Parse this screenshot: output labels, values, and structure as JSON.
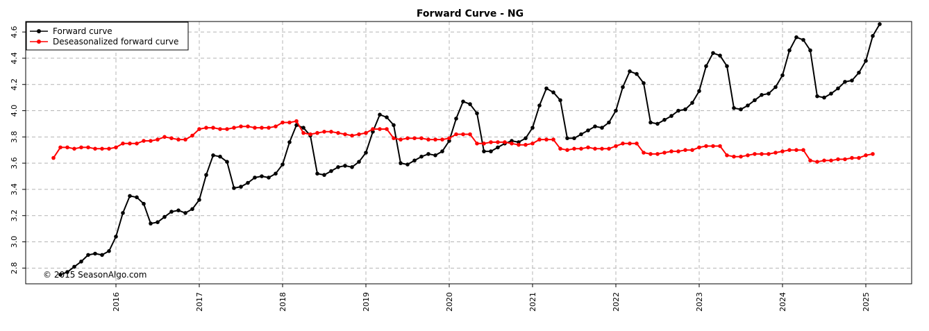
{
  "chart_data": {
    "type": "line",
    "title": "Forward Curve -  NG",
    "credit": "© 2015 SeasonAlgo.com",
    "xlabel": "",
    "ylabel": "",
    "x_start": "2015-03",
    "x_ticks": [
      "2016",
      "2017",
      "2018",
      "2019",
      "2020",
      "2021",
      "2022",
      "2023",
      "2024",
      "2025"
    ],
    "y_ticks": [
      2.8,
      3.0,
      3.2,
      3.4,
      3.6,
      3.8,
      4.0,
      4.2,
      4.4,
      4.6
    ],
    "ylim": [
      2.68,
      4.68
    ],
    "grid": true,
    "legend_position": "top-left",
    "series": [
      {
        "name": "Forward curve",
        "color": "#000000",
        "start_date": "2015-05",
        "values": [
          2.75,
          2.77,
          2.81,
          2.85,
          2.9,
          2.91,
          2.9,
          2.93,
          3.04,
          3.22,
          3.35,
          3.34,
          3.29,
          3.14,
          3.15,
          3.19,
          3.23,
          3.24,
          3.22,
          3.25,
          3.32,
          3.51,
          3.66,
          3.65,
          3.61,
          3.41,
          3.42,
          3.45,
          3.49,
          3.5,
          3.49,
          3.52,
          3.59,
          3.76,
          3.89,
          3.87,
          3.81,
          3.52,
          3.51,
          3.54,
          3.57,
          3.58,
          3.57,
          3.61,
          3.68,
          3.84,
          3.97,
          3.95,
          3.89,
          3.6,
          3.59,
          3.62,
          3.65,
          3.67,
          3.66,
          3.69,
          3.77,
          3.94,
          4.07,
          4.05,
          3.98,
          3.69,
          3.69,
          3.72,
          3.75,
          3.77,
          3.76,
          3.79,
          3.87,
          4.04,
          4.17,
          4.14,
          4.08,
          3.79,
          3.79,
          3.82,
          3.85,
          3.88,
          3.87,
          3.91,
          4.0,
          4.18,
          4.3,
          4.28,
          4.21,
          3.91,
          3.9,
          3.93,
          3.96,
          4.0,
          4.01,
          4.06,
          4.15,
          4.34,
          4.44,
          4.42,
          4.34,
          4.02,
          4.01,
          4.04,
          4.08,
          4.12,
          4.13,
          4.18,
          4.27,
          4.46,
          4.56,
          4.54,
          4.46,
          4.11,
          4.1,
          4.13,
          4.17,
          4.22,
          4.23,
          4.29,
          4.38,
          4.57,
          4.66
        ]
      },
      {
        "name": "Deseasonalized forward curve",
        "color": "#ff0000",
        "start_date": "2015-04",
        "values": [
          3.64,
          3.72,
          3.72,
          3.71,
          3.72,
          3.72,
          3.71,
          3.71,
          3.71,
          3.72,
          3.75,
          3.75,
          3.75,
          3.77,
          3.77,
          3.78,
          3.8,
          3.79,
          3.78,
          3.78,
          3.81,
          3.86,
          3.87,
          3.87,
          3.86,
          3.86,
          3.87,
          3.88,
          3.88,
          3.87,
          3.87,
          3.87,
          3.88,
          3.91,
          3.91,
          3.92,
          3.83,
          3.82,
          3.83,
          3.84,
          3.84,
          3.83,
          3.82,
          3.81,
          3.82,
          3.83,
          3.86,
          3.86,
          3.86,
          3.79,
          3.78,
          3.79,
          3.79,
          3.79,
          3.78,
          3.78,
          3.78,
          3.79,
          3.82,
          3.82,
          3.82,
          3.75,
          3.75,
          3.76,
          3.76,
          3.76,
          3.75,
          3.74,
          3.74,
          3.75,
          3.78,
          3.78,
          3.78,
          3.71,
          3.7,
          3.71,
          3.71,
          3.72,
          3.71,
          3.71,
          3.71,
          3.73,
          3.75,
          3.75,
          3.75,
          3.68,
          3.67,
          3.67,
          3.68,
          3.69,
          3.69,
          3.7,
          3.7,
          3.72,
          3.73,
          3.73,
          3.73,
          3.66,
          3.65,
          3.65,
          3.66,
          3.67,
          3.67,
          3.67,
          3.68,
          3.69,
          3.7,
          3.7,
          3.7,
          3.62,
          3.61,
          3.62,
          3.62,
          3.63,
          3.63,
          3.64,
          3.64,
          3.66,
          3.67
        ]
      }
    ]
  }
}
